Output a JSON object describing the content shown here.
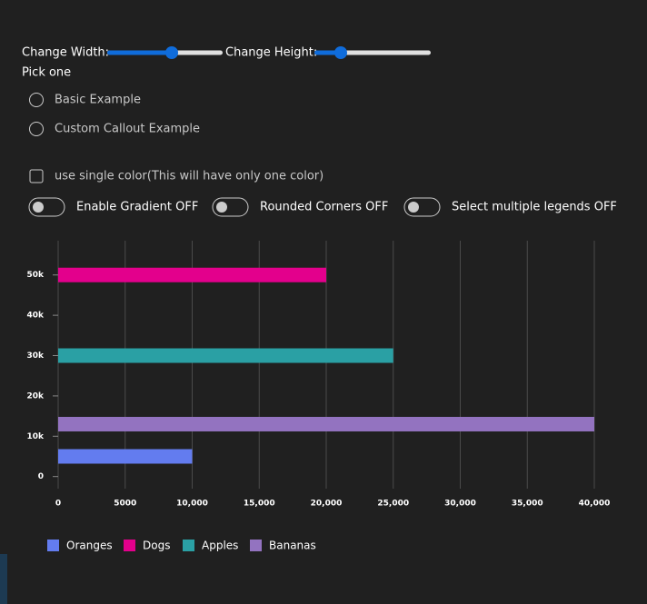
{
  "controls": {
    "width_label": "Change Width:",
    "height_label": "Change Height:",
    "pick_label": "Pick one",
    "radios": [
      "Basic Example",
      "Custom Callout Example"
    ],
    "checkbox": "use single color(This will have only one color)",
    "toggles": [
      "Enable Gradient OFF",
      "Rounded Corners OFF",
      "Select multiple legends OFF"
    ]
  },
  "chart_data": {
    "type": "hbar",
    "series": [
      {
        "name": "Oranges",
        "color": "#637cef",
        "values": [
          10000
        ],
        "y": [
          5000
        ]
      },
      {
        "name": "Dogs",
        "color": "#e3008c",
        "values": [
          20000
        ],
        "y": [
          50000
        ]
      },
      {
        "name": "Apples",
        "color": "#2aa0a4",
        "values": [
          25000
        ],
        "y": [
          30000
        ]
      },
      {
        "name": "Bananas",
        "color": "#9373c0",
        "values": [
          40000
        ],
        "y": [
          13000
        ]
      }
    ],
    "xlim": [
      0,
      40000
    ],
    "xticks": [
      0,
      5000,
      {
        "value": 10000,
        "label": "10,000"
      },
      {
        "value": 15000,
        "label": "15,000"
      },
      {
        "value": 20000,
        "label": "20,000"
      },
      {
        "value": 25000,
        "label": "25,000"
      },
      {
        "value": 30000,
        "label": "30,000"
      },
      {
        "value": 35000,
        "label": "35,000"
      },
      {
        "value": 40000,
        "label": "40,000"
      }
    ],
    "ylim": [
      -3000,
      58500
    ],
    "yticks": [
      0,
      {
        "value": 10000,
        "label": "10k"
      },
      {
        "value": 20000,
        "label": "20k"
      },
      {
        "value": 30000,
        "label": "30k"
      },
      {
        "value": 40000,
        "label": "40k"
      },
      {
        "value": 50000,
        "label": "50k"
      }
    ],
    "grid": true
  }
}
